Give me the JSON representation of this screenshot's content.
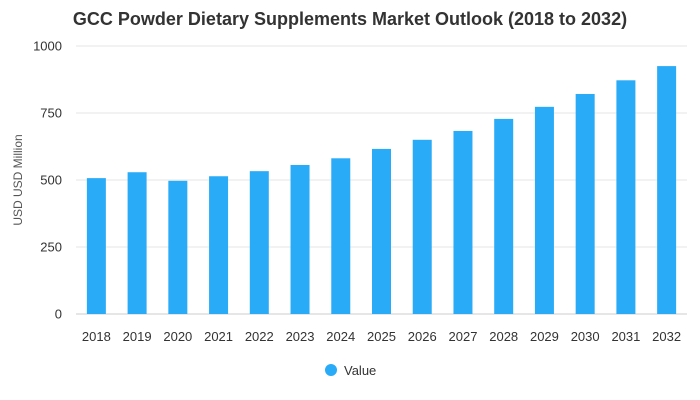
{
  "chart_data": {
    "type": "bar",
    "title": "GCC Powder Dietary Supplements Market Outlook (2018 to 2032)",
    "ylabel": "USD USD Million",
    "xlabel": "",
    "categories": [
      "2018",
      "2019",
      "2020",
      "2021",
      "2022",
      "2023",
      "2024",
      "2025",
      "2026",
      "2027",
      "2028",
      "2029",
      "2030",
      "2031",
      "2032"
    ],
    "series": [
      {
        "name": "Value",
        "color": "#2aabf7",
        "values": [
          507,
          529,
          497,
          514,
          533,
          556,
          581,
          616,
          650,
          683,
          728,
          773,
          821,
          872,
          925
        ]
      }
    ],
    "ylim": [
      0,
      1000
    ],
    "yticks": [
      "0",
      "250",
      "500",
      "750",
      "1000"
    ],
    "ytick_values": [
      0,
      250,
      500,
      750,
      1000
    ],
    "grid": true,
    "legend_position": "bottom-center"
  }
}
